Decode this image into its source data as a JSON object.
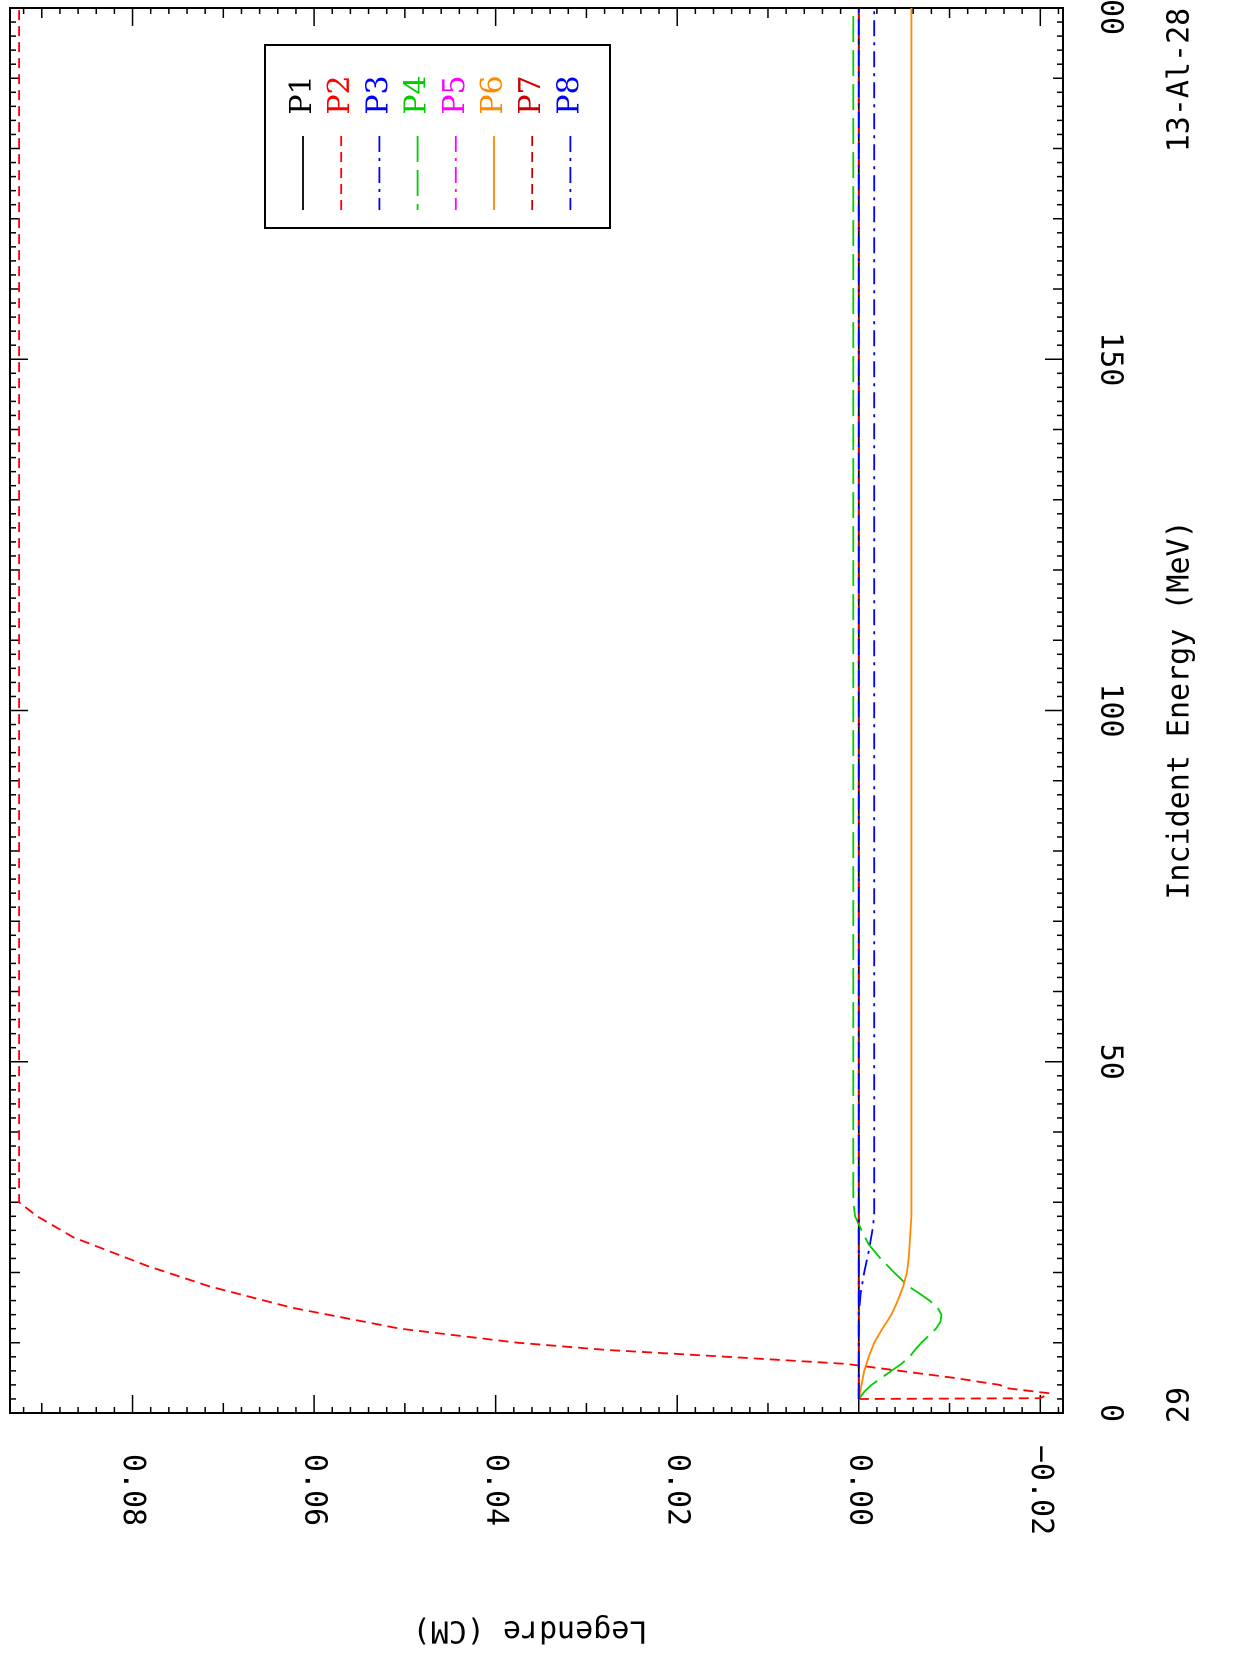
{
  "chart_data": {
    "type": "line",
    "orientation": "rotated-90-clockwise",
    "title": "",
    "xlabel": "Incident Energy (MeV)",
    "ylabel": "Legendre (CM)",
    "xlim": [
      0,
      200
    ],
    "ylim": [
      -0.0225,
      0.0935
    ],
    "grid": false,
    "legend_position": "top-right",
    "xticks": [
      0,
      50,
      100,
      150,
      200
    ],
    "yticks": [
      -0.02,
      0.0,
      0.02,
      0.04,
      0.06,
      0.08
    ],
    "xtick_labels": [
      "0",
      "50",
      "100",
      "150",
      "200"
    ],
    "ytick_labels": [
      "−0.02",
      "0.00",
      "0.02",
      "0.04",
      "0.06",
      "0.08"
    ],
    "corner_labels": {
      "projectile": "29",
      "target": "13-Al-28"
    },
    "series": [
      {
        "name": "P1",
        "color": "#000000",
        "dash": "solid",
        "x": [
          2,
          200
        ],
        "y": [
          0.0,
          0.0
        ]
      },
      {
        "name": "P2",
        "color": "#ff0000",
        "dash": "dash",
        "x": [
          2.0,
          2.1,
          2.8,
          3.5,
          4.0,
          5.0,
          6.0,
          7.0,
          8.0,
          9.0,
          10.0,
          12.0,
          15.0,
          18.0,
          21.0,
          25.0,
          28.0,
          30.0,
          200.0
        ],
        "y": [
          0.0,
          -0.02,
          -0.021,
          -0.0165,
          -0.0155,
          -0.0105,
          -0.0045,
          0.0015,
          0.0145,
          0.028,
          0.0375,
          0.0505,
          0.0625,
          0.0715,
          0.0785,
          0.0865,
          0.0905,
          0.0925,
          0.0925
        ]
      },
      {
        "name": "P3",
        "color": "#0000ff",
        "dash": "dashdot",
        "x": [
          2,
          10,
          14,
          17,
          20,
          23,
          26,
          28,
          30,
          200
        ],
        "y": [
          0.0,
          0.0,
          0.0,
          -0.0002,
          -0.0006,
          -0.0011,
          -0.0015,
          -0.0017,
          -0.0017,
          -0.0017
        ]
      },
      {
        "name": "P4",
        "color": "#00cc00",
        "dash": "longdash",
        "x": [
          2,
          3,
          4,
          5,
          6,
          7,
          8,
          9,
          10,
          11,
          12,
          13,
          14,
          15,
          16,
          17,
          18,
          20,
          22,
          24,
          26,
          28,
          30,
          200
        ],
        "y": [
          0.0,
          -0.0006,
          -0.0014,
          -0.0025,
          -0.0036,
          -0.0047,
          -0.0056,
          -0.0062,
          -0.0069,
          -0.0077,
          -0.0085,
          -0.009,
          -0.0091,
          -0.0087,
          -0.0078,
          -0.0067,
          -0.0055,
          -0.0039,
          -0.0024,
          -0.0011,
          -0.0003,
          0.0004,
          0.0006,
          0.0006
        ]
      },
      {
        "name": "P5",
        "color": "#ff00ff",
        "dash": "dashdot",
        "x": [
          2,
          200
        ],
        "y": [
          0.0,
          0.0
        ]
      },
      {
        "name": "P6",
        "color": "#ff8800",
        "dash": "solid",
        "x": [
          2,
          4,
          6,
          8,
          10,
          12,
          14,
          16,
          18,
          20,
          22,
          24,
          26,
          28,
          30,
          200
        ],
        "y": [
          0.0,
          -0.0003,
          -0.0006,
          -0.0011,
          -0.0017,
          -0.0026,
          -0.0036,
          -0.0043,
          -0.0049,
          -0.0053,
          -0.0055,
          -0.0056,
          -0.0057,
          -0.0058,
          -0.0058,
          -0.0058
        ]
      },
      {
        "name": "P7",
        "color": "#cc0000",
        "dash": "dash",
        "x": [
          2,
          200
        ],
        "y": [
          0.0,
          0.0
        ]
      },
      {
        "name": "P8",
        "color": "#0000ff",
        "dash": "dashdot",
        "x": [
          2,
          4,
          8,
          12,
          16,
          20,
          24,
          28,
          30,
          200
        ],
        "y": [
          0.0,
          0.0,
          0.0,
          0.0,
          0.0,
          0.0,
          0.0,
          0.0,
          0.0,
          0.0
        ]
      }
    ]
  }
}
